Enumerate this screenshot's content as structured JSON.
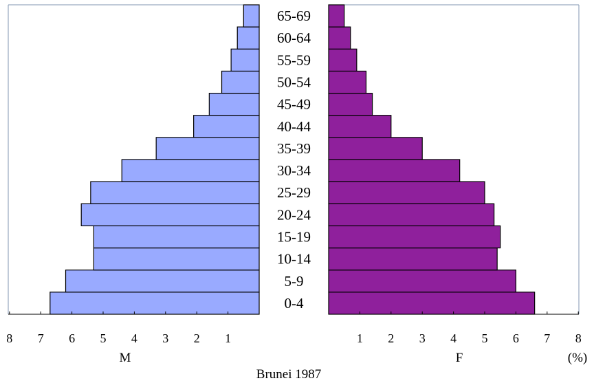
{
  "chart_data": {
    "type": "bar",
    "title": "Brunei 1987",
    "unit_label": "(%)",
    "left_label": "M",
    "right_label": "F",
    "categories": [
      "0-4",
      "5-9",
      "10-14",
      "15-19",
      "20-24",
      "25-29",
      "30-34",
      "35-39",
      "40-44",
      "45-49",
      "50-54",
      "55-59",
      "60-64",
      "65-69"
    ],
    "series": [
      {
        "name": "M",
        "color": "#99aaff",
        "values": [
          6.7,
          6.2,
          5.3,
          5.3,
          5.7,
          5.4,
          4.4,
          3.3,
          2.1,
          1.6,
          1.2,
          0.9,
          0.7,
          0.5
        ]
      },
      {
        "name": "F",
        "color": "#8f209c",
        "values": [
          6.6,
          6.0,
          5.4,
          5.5,
          5.3,
          5.0,
          4.2,
          3.0,
          2.0,
          1.4,
          1.2,
          0.9,
          0.7,
          0.5
        ]
      }
    ],
    "left_ticks": [
      "8",
      "7",
      "6",
      "5",
      "4",
      "3",
      "2",
      "1"
    ],
    "right_ticks": [
      "1",
      "2",
      "3",
      "4",
      "5",
      "6",
      "7",
      "8"
    ],
    "xlim": [
      0,
      8
    ]
  }
}
